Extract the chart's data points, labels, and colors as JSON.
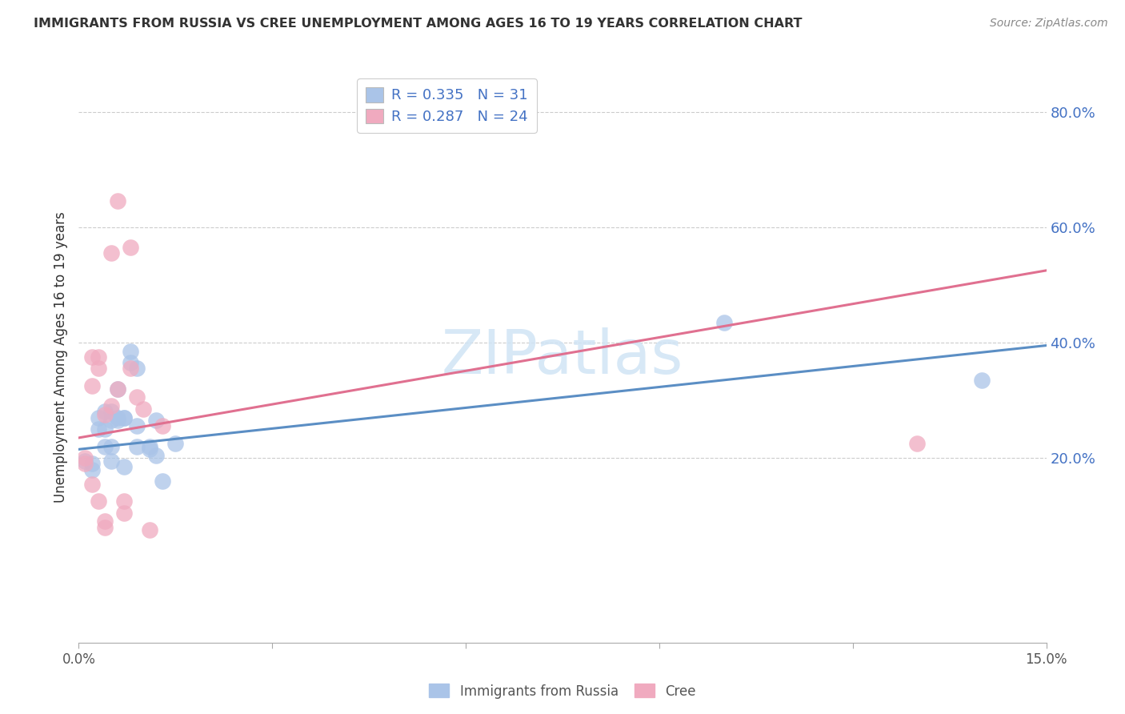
{
  "title": "IMMIGRANTS FROM RUSSIA VS CREE UNEMPLOYMENT AMONG AGES 16 TO 19 YEARS CORRELATION CHART",
  "source": "Source: ZipAtlas.com",
  "ylabel": "Unemployment Among Ages 16 to 19 years",
  "x_min": 0.0,
  "x_max": 0.15,
  "y_min": -0.12,
  "y_max": 0.87,
  "y_ticks": [
    0.2,
    0.4,
    0.6,
    0.8
  ],
  "y_tick_labels": [
    "20.0%",
    "40.0%",
    "60.0%",
    "80.0%"
  ],
  "legend_R1": "0.335",
  "legend_N1": "31",
  "legend_R2": "0.287",
  "legend_N2": "24",
  "blue_color": "#5b8ec4",
  "pink_color": "#e07090",
  "blue_scatter_color": "#aac4e8",
  "pink_scatter_color": "#f0aabf",
  "legend_text_color": "#4472c4",
  "watermark_color": "#d0e4f5",
  "title_color": "#333333",
  "source_color": "#888888",
  "axis_label_color": "#555555",
  "grid_color": "#cccccc",
  "tick_color": "#aaaaaa",
  "blue_points": [
    [
      0.001,
      0.195
    ],
    [
      0.002,
      0.19
    ],
    [
      0.002,
      0.18
    ],
    [
      0.003,
      0.27
    ],
    [
      0.003,
      0.25
    ],
    [
      0.004,
      0.28
    ],
    [
      0.004,
      0.22
    ],
    [
      0.004,
      0.25
    ],
    [
      0.005,
      0.28
    ],
    [
      0.005,
      0.265
    ],
    [
      0.005,
      0.22
    ],
    [
      0.005,
      0.195
    ],
    [
      0.006,
      0.27
    ],
    [
      0.006,
      0.265
    ],
    [
      0.006,
      0.32
    ],
    [
      0.007,
      0.27
    ],
    [
      0.007,
      0.27
    ],
    [
      0.007,
      0.185
    ],
    [
      0.008,
      0.385
    ],
    [
      0.008,
      0.365
    ],
    [
      0.009,
      0.355
    ],
    [
      0.009,
      0.255
    ],
    [
      0.009,
      0.22
    ],
    [
      0.011,
      0.22
    ],
    [
      0.011,
      0.215
    ],
    [
      0.012,
      0.205
    ],
    [
      0.012,
      0.265
    ],
    [
      0.013,
      0.16
    ],
    [
      0.015,
      0.225
    ],
    [
      0.1,
      0.435
    ],
    [
      0.14,
      0.335
    ]
  ],
  "pink_points": [
    [
      0.001,
      0.2
    ],
    [
      0.001,
      0.19
    ],
    [
      0.002,
      0.155
    ],
    [
      0.002,
      0.325
    ],
    [
      0.002,
      0.375
    ],
    [
      0.003,
      0.355
    ],
    [
      0.003,
      0.375
    ],
    [
      0.003,
      0.125
    ],
    [
      0.004,
      0.09
    ],
    [
      0.004,
      0.08
    ],
    [
      0.004,
      0.275
    ],
    [
      0.005,
      0.29
    ],
    [
      0.005,
      0.555
    ],
    [
      0.006,
      0.645
    ],
    [
      0.006,
      0.32
    ],
    [
      0.007,
      0.125
    ],
    [
      0.007,
      0.105
    ],
    [
      0.008,
      0.565
    ],
    [
      0.008,
      0.355
    ],
    [
      0.009,
      0.305
    ],
    [
      0.01,
      0.285
    ],
    [
      0.011,
      0.075
    ],
    [
      0.013,
      0.255
    ],
    [
      0.13,
      0.225
    ]
  ],
  "blue_line_x": [
    0.0,
    0.15
  ],
  "blue_line_y": [
    0.215,
    0.395
  ],
  "pink_line_x": [
    0.0,
    0.15
  ],
  "pink_line_y": [
    0.235,
    0.525
  ],
  "x_tick_positions": [
    0.0,
    0.03,
    0.06,
    0.09,
    0.12,
    0.15
  ]
}
